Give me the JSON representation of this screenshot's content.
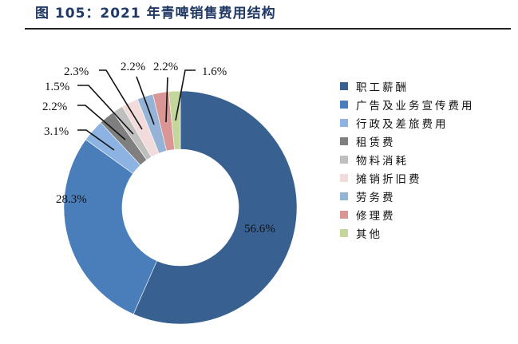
{
  "title": "图 105：2021 年青啤销售费用结构",
  "chart_data": {
    "type": "pie",
    "subtype": "donut",
    "title": "图 105：2021 年青啤销售费用结构",
    "start_angle": "12 o'clock, clockwise",
    "legend_position": "right",
    "slices": [
      {
        "label": "职工薪酬",
        "value": 56.6,
        "display": "56.6%",
        "color": "#386192"
      },
      {
        "label": "广告及业务宣传费用",
        "value": 28.3,
        "display": "28.3%",
        "color": "#4a7ebb"
      },
      {
        "label": "行政及差旅费用",
        "value": 3.1,
        "display": "3.1%",
        "color": "#8db3e2"
      },
      {
        "label": "租赁费",
        "value": 2.2,
        "display": "2.2%",
        "color": "#7f7f7f"
      },
      {
        "label": "物料消耗",
        "value": 1.5,
        "display": "1.5%",
        "color": "#bfbfbf"
      },
      {
        "label": "摊销折旧费",
        "value": 2.3,
        "display": "2.3%",
        "color": "#f2dcdb"
      },
      {
        "label": "劳务费",
        "value": 2.2,
        "display": "2.2%",
        "color": "#95b3d7"
      },
      {
        "label": "修理费",
        "value": 2.2,
        "display": "2.2%",
        "color": "#d99694"
      },
      {
        "label": "其他",
        "value": 1.6,
        "display": "1.6%",
        "color": "#c3d69b"
      }
    ]
  },
  "legend": [
    {
      "label": "职工薪酬",
      "color": "#386192"
    },
    {
      "label": "广告及业务宣传费用",
      "color": "#4a7ebb"
    },
    {
      "label": "行政及差旅费用",
      "color": "#8db3e2"
    },
    {
      "label": "租赁费",
      "color": "#7f7f7f"
    },
    {
      "label": "物料消耗",
      "color": "#bfbfbf"
    },
    {
      "label": "摊销折旧费",
      "color": "#f2dcdb"
    },
    {
      "label": "劳务费",
      "color": "#95b3d7"
    },
    {
      "label": "修理费",
      "color": "#d99694"
    },
    {
      "label": "其他",
      "color": "#c3d69b"
    }
  ],
  "labels": {
    "salary": "56.6%",
    "ads": "28.3%",
    "admin": "3.1%",
    "rent": "2.2%",
    "materials": "1.5%",
    "depreciation": "2.3%",
    "labor": "2.2%",
    "repair": "2.2%",
    "other": "1.6%"
  }
}
